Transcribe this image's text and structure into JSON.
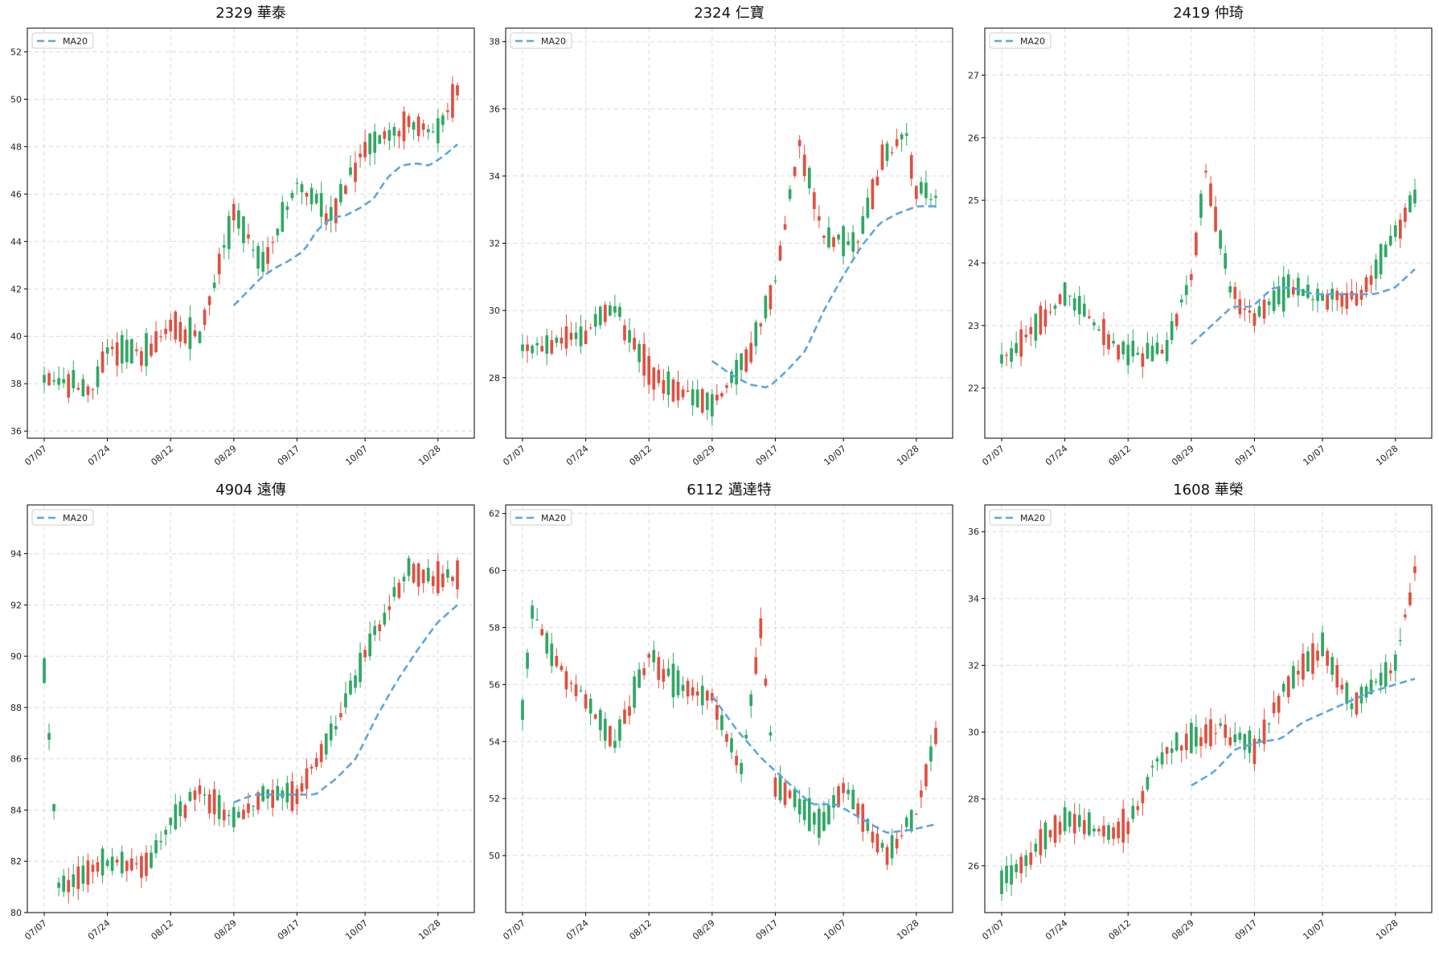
{
  "colors": {
    "up": "#e05040",
    "down": "#2fa864",
    "ma": "#5ea6e0"
  },
  "chart_data": [
    {
      "type": "candlestick",
      "title": "2329 華泰",
      "legend": [
        "MA20"
      ],
      "legend_position": "top-left",
      "grid": true,
      "ylim": [
        35.7,
        53.0
      ],
      "yticks": [
        "36",
        "38",
        "40",
        "42",
        "44",
        "46",
        "48",
        "50",
        "52"
      ],
      "xticks": [
        "07/07",
        "07/24",
        "08/12",
        "08/29",
        "09/17",
        "10/07",
        "10/28"
      ],
      "series": [
        {
          "name": "MA20",
          "from": "08/29",
          "to_end": true,
          "values": [
            41.3,
            41.9,
            42.5,
            42.9,
            43.2,
            43.6,
            44.5,
            45.0,
            45.1,
            45.4,
            45.8,
            46.7,
            47.2,
            47.3,
            47.2,
            47.6,
            48.1
          ]
        }
      ],
      "ohlc_keypoints": [
        [
          "07/07",
          38.2
        ],
        [
          "07/20",
          37.8
        ],
        [
          "07/24",
          39.5
        ],
        [
          "08/04",
          39.3
        ],
        [
          "08/12",
          40.5
        ],
        [
          "08/20",
          40.0
        ],
        [
          "08/29",
          45.2
        ],
        [
          "09/08",
          43.0
        ],
        [
          "09/17",
          46.5
        ],
        [
          "09/26",
          45.0
        ],
        [
          "10/07",
          48.0
        ],
        [
          "10/20",
          49.0
        ],
        [
          "10/28",
          48.6
        ],
        [
          "11/03",
          50.3
        ]
      ]
    },
    {
      "type": "candlestick",
      "title": "2324 仁寶",
      "legend": [
        "MA20"
      ],
      "legend_position": "top-left",
      "grid": true,
      "ylim": [
        26.2,
        38.4
      ],
      "yticks": [
        "28",
        "30",
        "32",
        "34",
        "36",
        "38"
      ],
      "xticks": [
        "07/07",
        "07/24",
        "08/12",
        "08/29",
        "09/17",
        "10/07",
        "10/28"
      ],
      "series": [
        {
          "name": "MA20",
          "from": "08/29",
          "to_end": true,
          "values": [
            28.5,
            28.1,
            27.8,
            27.7,
            28.2,
            28.8,
            30.0,
            31.0,
            31.9,
            32.6,
            32.9,
            33.1,
            33.1
          ]
        }
      ],
      "ohlc_keypoints": [
        [
          "07/07",
          28.8
        ],
        [
          "07/24",
          29.3
        ],
        [
          "08/01",
          30.1
        ],
        [
          "08/12",
          28.2
        ],
        [
          "08/20",
          27.6
        ],
        [
          "08/29",
          27.2
        ],
        [
          "09/05",
          28.1
        ],
        [
          "09/12",
          29.5
        ],
        [
          "09/17",
          31.0
        ],
        [
          "09/24",
          35.0
        ],
        [
          "10/01",
          32.2
        ],
        [
          "10/10",
          32.0
        ],
        [
          "10/17",
          34.5
        ],
        [
          "10/24",
          35.2
        ],
        [
          "10/28",
          33.5
        ],
        [
          "11/03",
          33.3
        ]
      ]
    },
    {
      "type": "candlestick",
      "title": "2419 仲琦",
      "legend": [
        "MA20"
      ],
      "legend_position": "top-left",
      "grid": true,
      "ylim": [
        21.2,
        27.75
      ],
      "yticks": [
        "22",
        "23",
        "24",
        "25",
        "26",
        "27"
      ],
      "xticks": [
        "07/07",
        "07/24",
        "08/12",
        "08/29",
        "09/17",
        "10/07",
        "10/28"
      ],
      "series": [
        {
          "name": "MA20",
          "from": "08/29",
          "to_end": true,
          "values": [
            22.7,
            23.0,
            23.3,
            23.3,
            23.6,
            23.6,
            23.5,
            23.5,
            23.5,
            23.5,
            23.6,
            23.9
          ]
        }
      ],
      "ohlc_keypoints": [
        [
          "07/07",
          22.4
        ],
        [
          "07/24",
          23.5
        ],
        [
          "08/12",
          22.5
        ],
        [
          "08/22",
          22.6
        ],
        [
          "08/29",
          23.8
        ],
        [
          "09/03",
          25.5
        ],
        [
          "09/10",
          23.6
        ],
        [
          "09/17",
          23.1
        ],
        [
          "09/26",
          23.6
        ],
        [
          "10/07",
          23.4
        ],
        [
          "10/17",
          23.5
        ],
        [
          "10/28",
          24.5
        ],
        [
          "11/03",
          25.0
        ]
      ]
    },
    {
      "type": "candlestick",
      "title": "4904 遠傳",
      "legend": [
        "MA20"
      ],
      "legend_position": "top-left",
      "grid": true,
      "ylim": [
        80.0,
        95.9
      ],
      "yticks": [
        "80",
        "82",
        "84",
        "86",
        "88",
        "90",
        "92",
        "94"
      ],
      "xticks": [
        "07/07",
        "07/24",
        "08/12",
        "08/29",
        "09/17",
        "10/07",
        "10/28"
      ],
      "series": [
        {
          "name": "MA20",
          "from": "08/29",
          "to_end": true,
          "values": [
            84.3,
            84.6,
            84.6,
            84.6,
            84.6,
            85.2,
            86.0,
            87.6,
            89.0,
            90.2,
            91.3,
            92.0
          ]
        }
      ],
      "ohlc_keypoints": [
        [
          "07/07",
          89.5
        ],
        [
          "07/09",
          84.0
        ],
        [
          "07/10",
          81.0
        ],
        [
          "07/24",
          82.0
        ],
        [
          "08/05",
          81.8
        ],
        [
          "08/12",
          83.5
        ],
        [
          "08/20",
          84.8
        ],
        [
          "08/29",
          83.6
        ],
        [
          "09/08",
          84.6
        ],
        [
          "09/17",
          84.6
        ],
        [
          "09/26",
          86.8
        ],
        [
          "10/07",
          90.0
        ],
        [
          "10/20",
          93.5
        ],
        [
          "10/28",
          93.0
        ],
        [
          "11/03",
          93.2
        ]
      ]
    },
    {
      "type": "candlestick",
      "title": "6112 邁達特",
      "legend": [
        "MA20"
      ],
      "legend_position": "top-left",
      "grid": true,
      "ylim": [
        48.0,
        62.3
      ],
      "yticks": [
        "50",
        "52",
        "54",
        "56",
        "58",
        "60",
        "62"
      ],
      "xticks": [
        "07/07",
        "07/24",
        "08/12",
        "08/29",
        "09/17",
        "10/07",
        "10/28"
      ],
      "series": [
        {
          "name": "MA20",
          "from": "08/29",
          "to_end": true,
          "values": [
            55.6,
            54.4,
            53.4,
            52.6,
            51.8,
            51.8,
            51.3,
            50.8,
            50.9,
            51.1
          ]
        }
      ],
      "ohlc_keypoints": [
        [
          "07/07",
          55.0
        ],
        [
          "07/09",
          58.5
        ],
        [
          "07/15",
          57.0
        ],
        [
          "07/24",
          55.5
        ],
        [
          "08/01",
          54.0
        ],
        [
          "08/12",
          57.0
        ],
        [
          "08/20",
          56.0
        ],
        [
          "08/29",
          55.5
        ],
        [
          "09/08",
          53.0
        ],
        [
          "09/12",
          58.0
        ],
        [
          "09/17",
          52.5
        ],
        [
          "10/01",
          51.0
        ],
        [
          "10/07",
          52.5
        ],
        [
          "10/20",
          50.0
        ],
        [
          "10/28",
          51.5
        ],
        [
          "11/03",
          54.2
        ]
      ]
    },
    {
      "type": "candlestick",
      "title": "1608 華榮",
      "legend": [
        "MA20"
      ],
      "legend_position": "top-left",
      "grid": true,
      "ylim": [
        24.6,
        36.8
      ],
      "yticks": [
        "26",
        "28",
        "30",
        "32",
        "34",
        "36"
      ],
      "xticks": [
        "07/07",
        "07/24",
        "08/12",
        "08/29",
        "09/17",
        "10/07",
        "10/28"
      ],
      "series": [
        {
          "name": "MA20",
          "from": "08/29",
          "to_end": true,
          "values": [
            28.4,
            28.8,
            29.5,
            29.7,
            29.8,
            30.3,
            30.6,
            30.9,
            31.2,
            31.4,
            31.6
          ]
        }
      ],
      "ohlc_keypoints": [
        [
          "07/07",
          25.4
        ],
        [
          "07/15",
          26.4
        ],
        [
          "07/24",
          27.4
        ],
        [
          "08/05",
          27.0
        ],
        [
          "08/12",
          27.2
        ],
        [
          "08/20",
          29.2
        ],
        [
          "08/29",
          29.8
        ],
        [
          "09/08",
          30.1
        ],
        [
          "09/17",
          29.5
        ],
        [
          "09/26",
          31.5
        ],
        [
          "10/07",
          32.5
        ],
        [
          "10/15",
          30.8
        ],
        [
          "10/28",
          32.0
        ],
        [
          "11/03",
          34.8
        ]
      ]
    }
  ]
}
